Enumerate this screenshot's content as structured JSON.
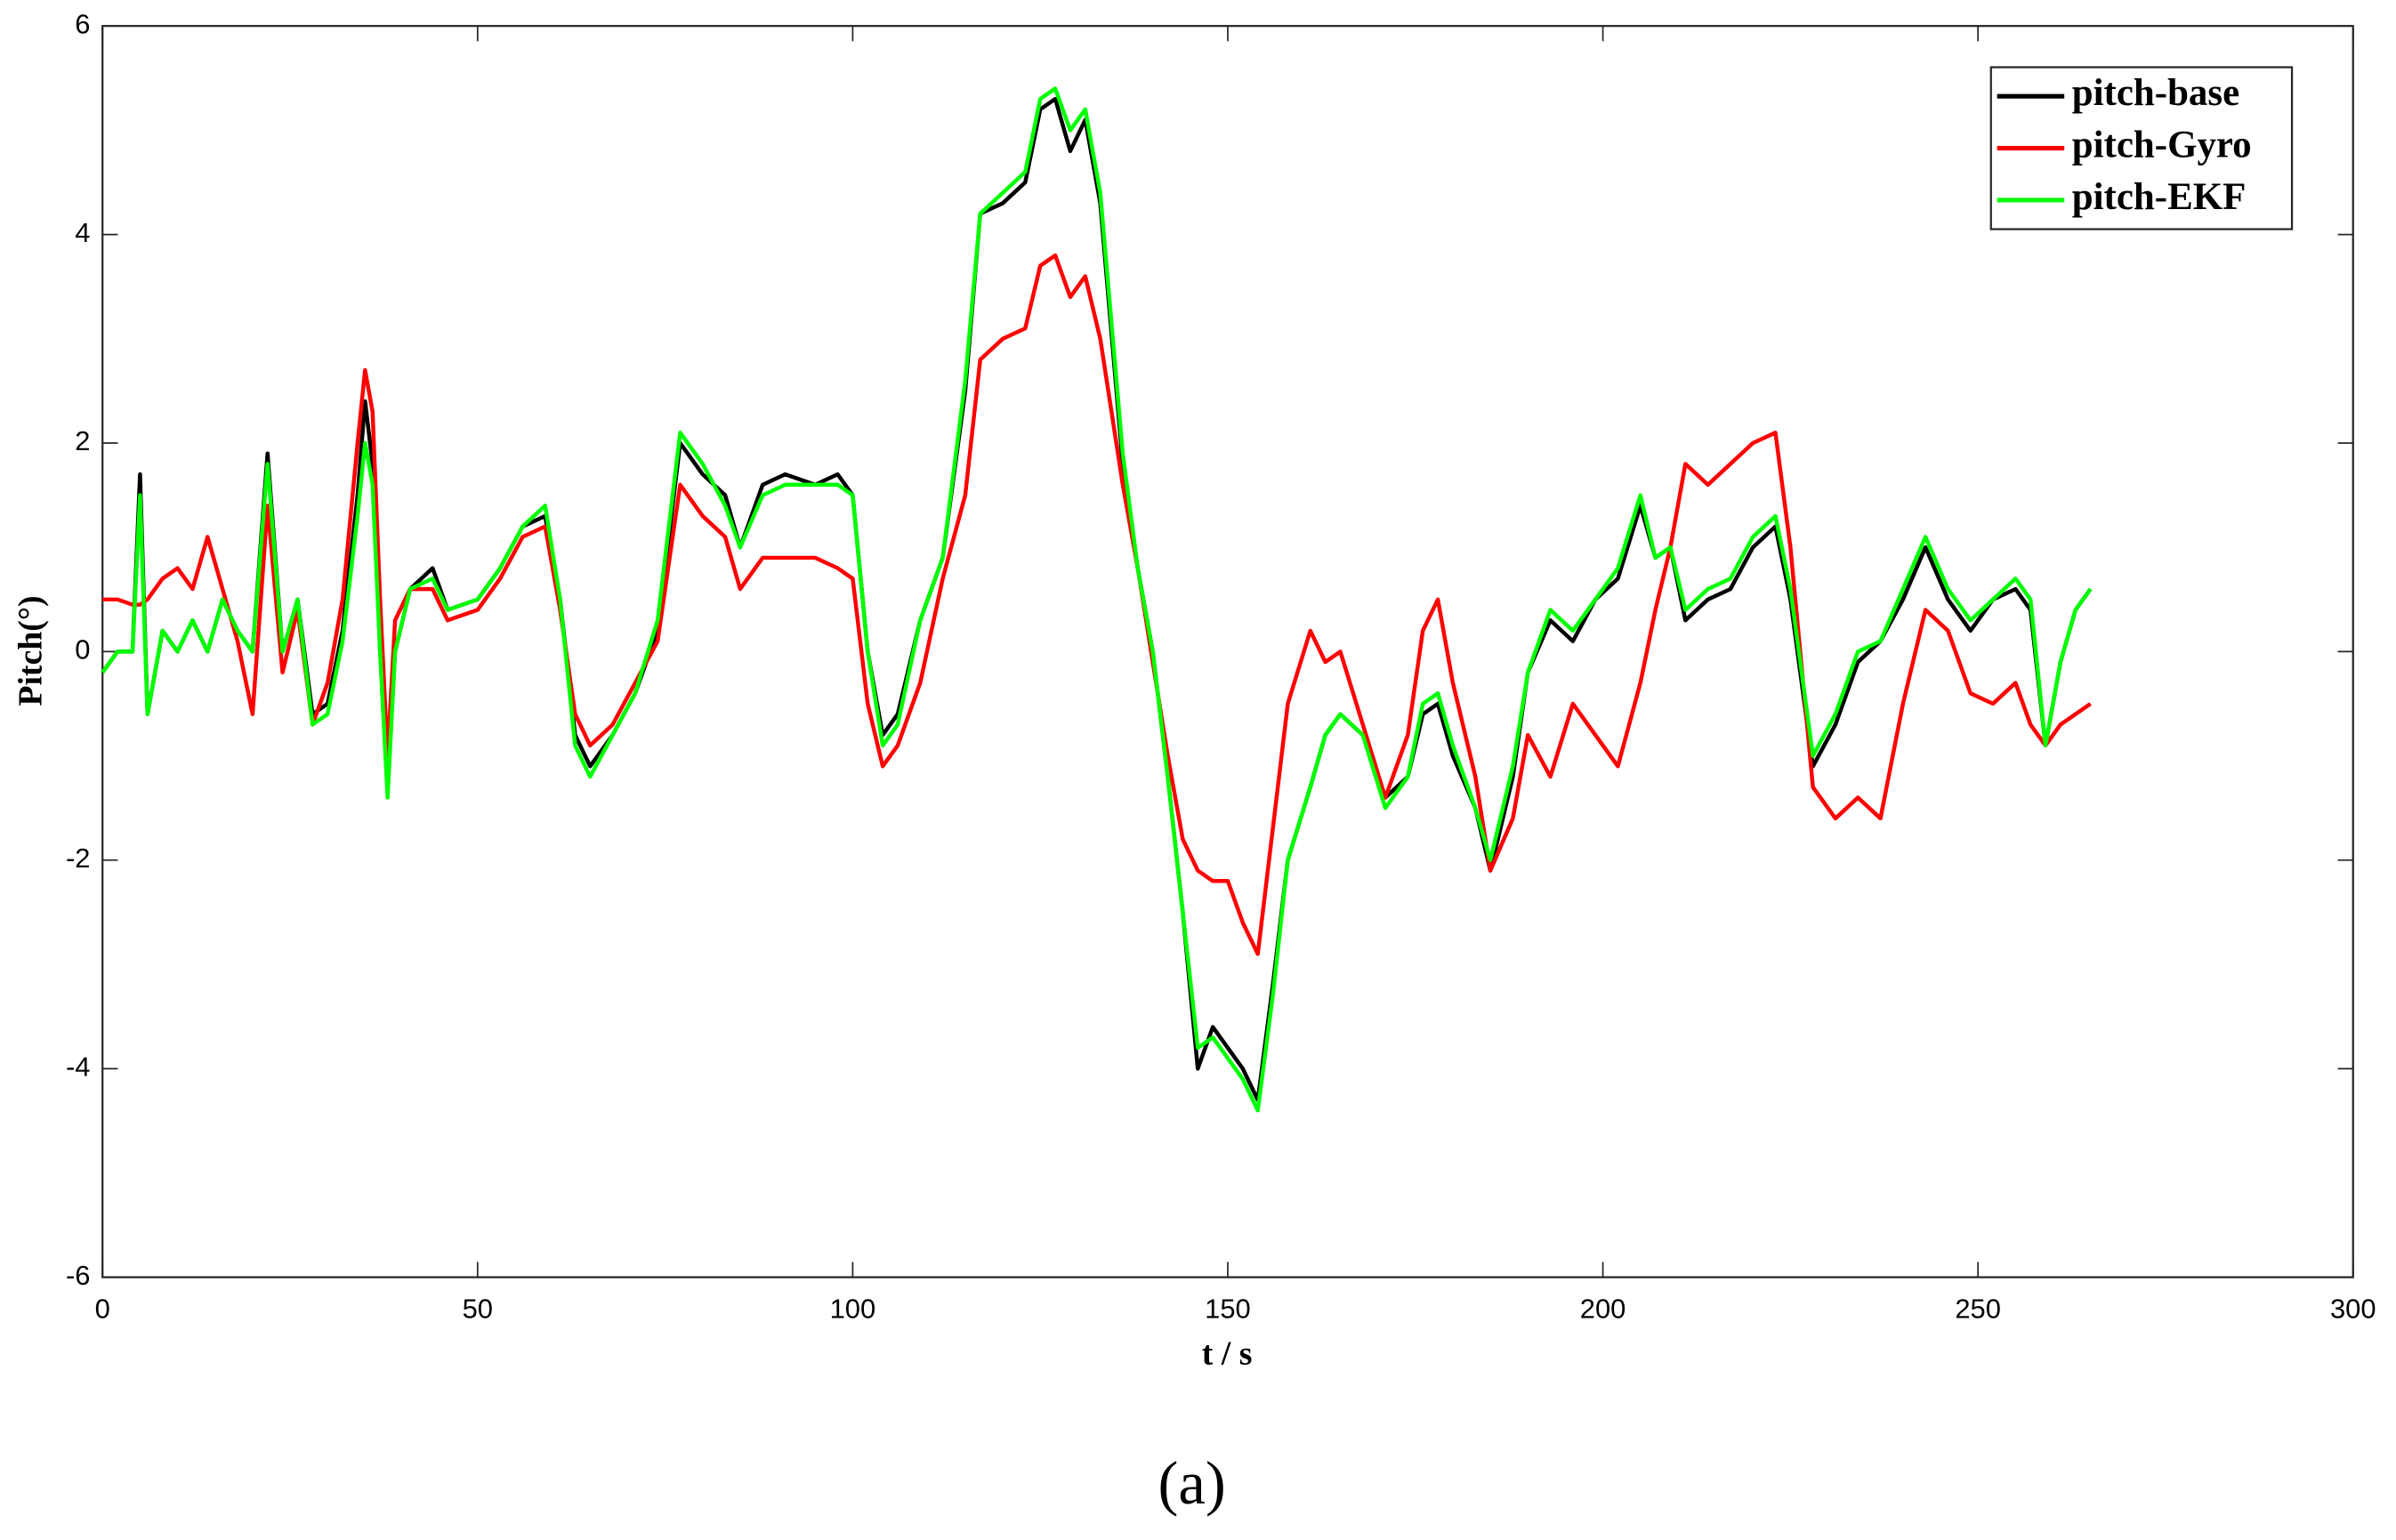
{
  "chart_data": {
    "type": "line",
    "x_label": "t / s",
    "y_label": "Pitch(°)",
    "caption": "(a)",
    "x": [
      0,
      2,
      4,
      5,
      6,
      8,
      10,
      12,
      14,
      16,
      18,
      20,
      22,
      24,
      26,
      28,
      30,
      32,
      34,
      35,
      36,
      37,
      38,
      39,
      41,
      44,
      46,
      50,
      53,
      56,
      59,
      61,
      63,
      65,
      68,
      71,
      74,
      77,
      80,
      83,
      85,
      88,
      91,
      95,
      98,
      100,
      102,
      104,
      106,
      109,
      112,
      115,
      117,
      120,
      123,
      125,
      127,
      129,
      131,
      133,
      136,
      138,
      140,
      142,
      144,
      146,
      148,
      150,
      152,
      154,
      156,
      158,
      161,
      163,
      165,
      168,
      171,
      174,
      176,
      178,
      180,
      183,
      185,
      188,
      190,
      193,
      196,
      199,
      202,
      205,
      207,
      209,
      211,
      214,
      217,
      220,
      223,
      225,
      228,
      231,
      234,
      237,
      240,
      243,
      246,
      249,
      252,
      255,
      257,
      259,
      261,
      263,
      265
    ],
    "series": [
      {
        "name": "pitch-base",
        "color": "#000000",
        "values": [
          -0.2,
          0.0,
          0.0,
          1.7,
          -0.6,
          0.2,
          0.0,
          0.3,
          0.0,
          0.5,
          0.2,
          0.0,
          1.9,
          0.0,
          0.5,
          -0.6,
          -0.5,
          0.2,
          1.5,
          2.4,
          1.8,
          0.0,
          -1.3,
          0.0,
          0.6,
          0.8,
          0.4,
          0.5,
          0.8,
          1.2,
          1.3,
          0.5,
          -0.8,
          -1.1,
          -0.8,
          -0.4,
          0.2,
          2.0,
          1.7,
          1.5,
          1.0,
          1.6,
          1.7,
          1.6,
          1.7,
          1.5,
          0.0,
          -0.8,
          -0.6,
          0.3,
          0.9,
          2.5,
          4.2,
          4.3,
          4.5,
          5.2,
          5.3,
          4.8,
          5.1,
          4.3,
          1.8,
          0.8,
          0.0,
          -1.2,
          -2.5,
          -4.0,
          -3.6,
          -3.8,
          -4.0,
          -4.3,
          -3.2,
          -2.0,
          -1.3,
          -0.8,
          -0.6,
          -0.8,
          -1.4,
          -1.2,
          -0.6,
          -0.5,
          -1.0,
          -1.5,
          -2.1,
          -1.2,
          -0.2,
          0.3,
          0.1,
          0.5,
          0.7,
          1.4,
          0.9,
          1.0,
          0.3,
          0.5,
          0.6,
          1.0,
          1.2,
          0.5,
          -1.1,
          -0.7,
          -0.1,
          0.1,
          0.5,
          1.0,
          0.5,
          0.2,
          0.5,
          0.6,
          0.4,
          -0.9,
          -0.1,
          0.4,
          0.6
        ]
      },
      {
        "name": "pitch-Gyro",
        "color": "#ff0000",
        "values": [
          0.5,
          0.5,
          0.45,
          0.45,
          0.5,
          0.7,
          0.8,
          0.6,
          1.1,
          0.6,
          0.1,
          -0.6,
          1.4,
          -0.2,
          0.4,
          -0.7,
          -0.3,
          0.5,
          2.0,
          2.7,
          2.3,
          0.5,
          -1.0,
          0.3,
          0.6,
          0.6,
          0.3,
          0.4,
          0.7,
          1.1,
          1.2,
          0.4,
          -0.6,
          -0.9,
          -0.7,
          -0.3,
          0.1,
          1.6,
          1.3,
          1.1,
          0.6,
          0.9,
          0.9,
          0.9,
          0.8,
          0.7,
          -0.5,
          -1.1,
          -0.9,
          -0.3,
          0.7,
          1.5,
          2.8,
          3.0,
          3.1,
          3.7,
          3.8,
          3.4,
          3.6,
          3.0,
          1.6,
          0.8,
          -0.1,
          -1.0,
          -1.8,
          -2.1,
          -2.2,
          -2.2,
          -2.6,
          -2.9,
          -1.7,
          -0.5,
          0.2,
          -0.1,
          0.0,
          -0.7,
          -1.4,
          -0.8,
          0.2,
          0.5,
          -0.3,
          -1.2,
          -2.1,
          -1.6,
          -0.8,
          -1.2,
          -0.5,
          -0.8,
          -1.1,
          -0.3,
          0.4,
          1.0,
          1.8,
          1.6,
          1.8,
          2.0,
          2.1,
          1.0,
          -1.3,
          -1.6,
          -1.4,
          -1.6,
          -0.5,
          0.4,
          0.2,
          -0.4,
          -0.5,
          -0.3,
          -0.7,
          -0.9,
          -0.7,
          -0.6,
          -0.5
        ]
      },
      {
        "name": "pitch-EKF",
        "color": "#00ff00",
        "values": [
          -0.2,
          0.0,
          0.0,
          1.5,
          -0.6,
          0.2,
          0.0,
          0.3,
          0.0,
          0.5,
          0.2,
          0.0,
          1.8,
          0.0,
          0.5,
          -0.7,
          -0.6,
          0.1,
          1.3,
          2.0,
          1.6,
          0.0,
          -1.4,
          0.0,
          0.6,
          0.7,
          0.4,
          0.5,
          0.8,
          1.2,
          1.4,
          0.5,
          -0.9,
          -1.2,
          -0.8,
          -0.4,
          0.3,
          2.1,
          1.8,
          1.4,
          1.0,
          1.5,
          1.6,
          1.6,
          1.6,
          1.5,
          0.0,
          -0.9,
          -0.7,
          0.3,
          0.9,
          2.6,
          4.2,
          4.4,
          4.6,
          5.3,
          5.4,
          5.0,
          5.2,
          4.4,
          1.9,
          0.8,
          0.0,
          -1.2,
          -2.5,
          -3.8,
          -3.7,
          -3.9,
          -4.1,
          -4.4,
          -3.3,
          -2.0,
          -1.3,
          -0.8,
          -0.6,
          -0.8,
          -1.5,
          -1.2,
          -0.5,
          -0.4,
          -0.9,
          -1.5,
          -2.0,
          -1.1,
          -0.2,
          0.4,
          0.2,
          0.5,
          0.8,
          1.5,
          0.9,
          1.0,
          0.4,
          0.6,
          0.7,
          1.1,
          1.3,
          0.6,
          -1.0,
          -0.6,
          0.0,
          0.1,
          0.6,
          1.1,
          0.6,
          0.3,
          0.5,
          0.7,
          0.5,
          -0.9,
          -0.1,
          0.4,
          0.6
        ]
      }
    ],
    "xlim": [
      0,
      300
    ],
    "xticks": [
      0,
      50,
      100,
      150,
      200,
      250,
      300
    ],
    "ylim": [
      -6,
      6
    ],
    "yticks": [
      -6,
      -4,
      -2,
      0,
      2,
      4,
      6
    ],
    "legend": "upper right"
  }
}
